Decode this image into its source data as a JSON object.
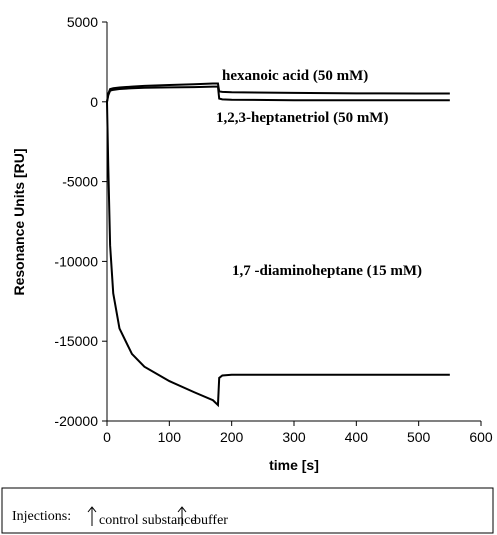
{
  "chart_data": {
    "type": "line",
    "xlabel": "time [s]",
    "ylabel": "Resonance Units [RU]",
    "x": [
      0,
      2,
      5,
      10,
      20,
      40,
      60,
      100,
      140,
      170,
      178,
      180,
      185,
      200,
      300,
      400,
      500,
      550
    ],
    "series": [
      {
        "name": "hexanoic acid (50 mM)",
        "color": "#000000",
        "values": [
          0,
          500,
          800,
          850,
          900,
          950,
          1000,
          1050,
          1100,
          1150,
          1150,
          650,
          620,
          600,
          560,
          530,
          520,
          520
        ]
      },
      {
        "name": "1,2,3-heptanetriol (50 mM)",
        "color": "#000000",
        "values": [
          0,
          400,
          700,
          750,
          800,
          850,
          880,
          900,
          920,
          950,
          950,
          200,
          150,
          130,
          100,
          100,
          100,
          100
        ]
      },
      {
        "name": "1,7 -diaminoheptane (15 mM)",
        "color": "#000000",
        "values": [
          0,
          -4000,
          -9000,
          -12000,
          -14200,
          -15800,
          -16600,
          -17500,
          -18200,
          -18700,
          -19000,
          -17300,
          -17150,
          -17100,
          -17100,
          -17100,
          -17100,
          -17100
        ]
      }
    ],
    "xlim": [
      0,
      600
    ],
    "xticks": [
      0,
      100,
      200,
      300,
      400,
      500,
      600
    ],
    "ylim": [
      -20000,
      5000
    ],
    "yticks": [
      -20000,
      -15000,
      -10000,
      -5000,
      0,
      5000
    ],
    "grid": false,
    "injection_legend": {
      "title": "Injections:",
      "items": [
        "control substance",
        "buffer"
      ]
    }
  }
}
